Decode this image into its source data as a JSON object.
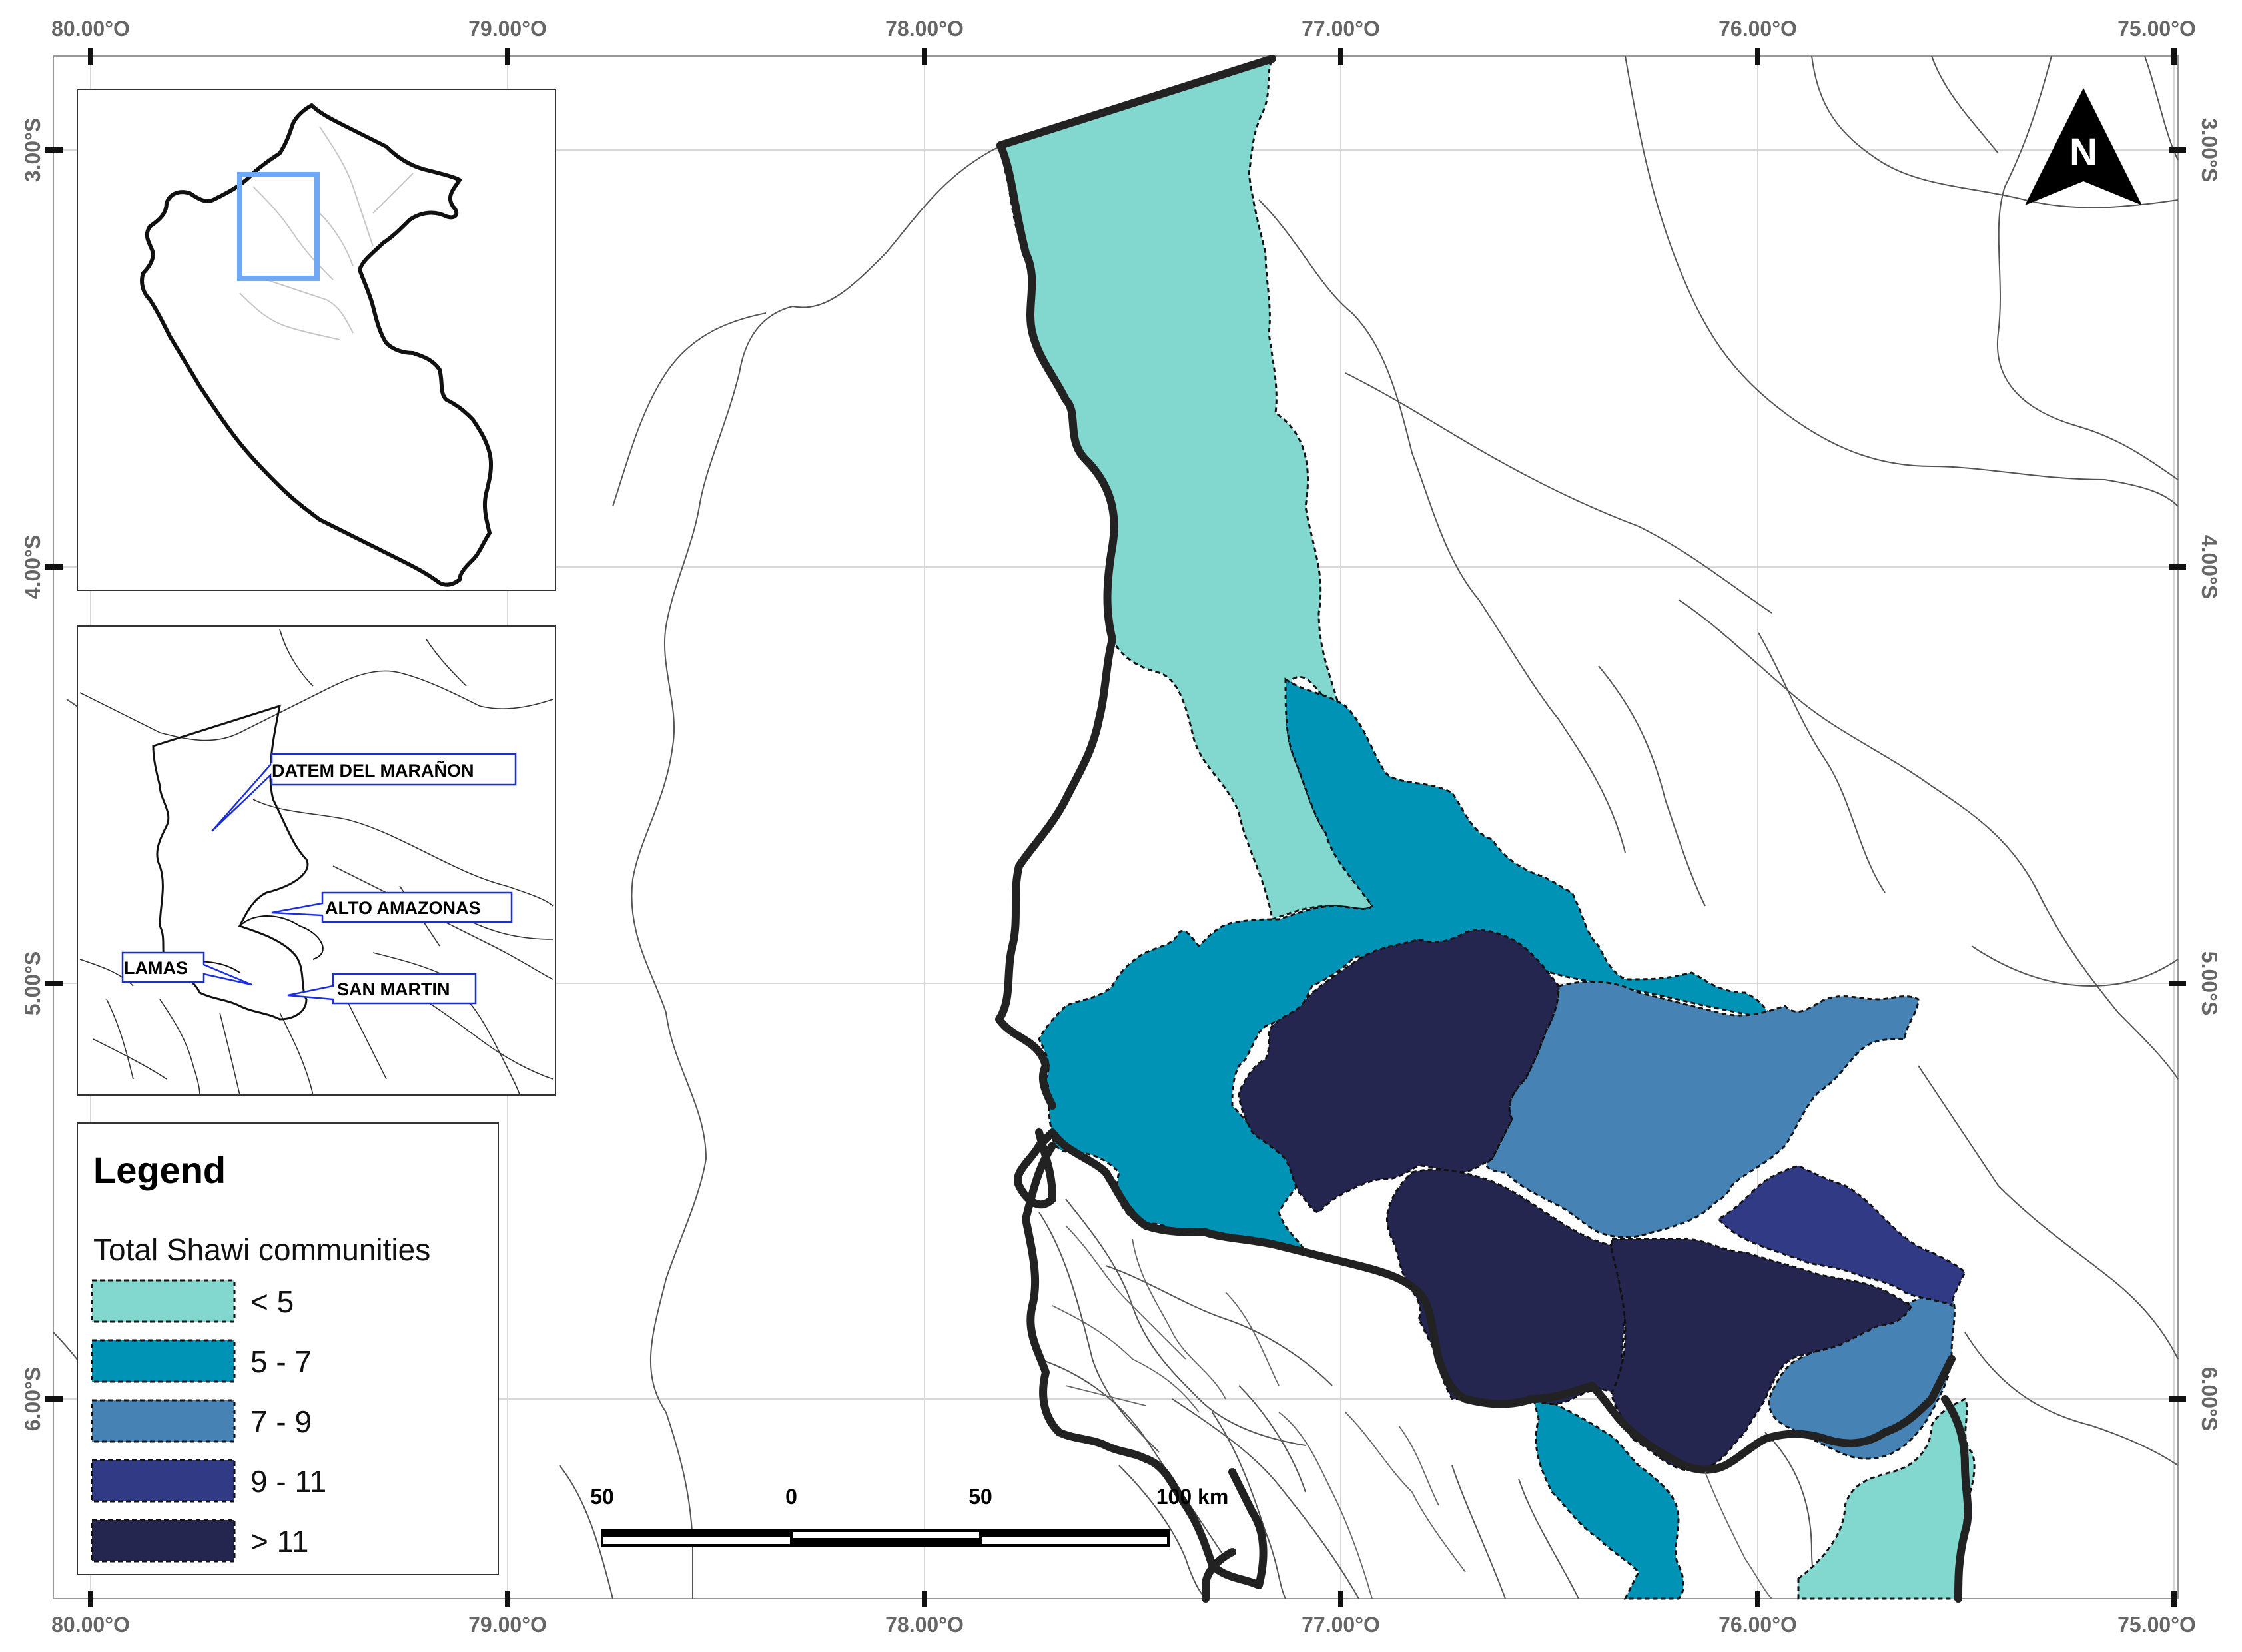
{
  "graticule": {
    "top": [
      "80.00°O",
      "79.00°O",
      "78.00°O",
      "77.00°O",
      "76.00°O",
      "75.00°O"
    ],
    "bottom": [
      "80.00°O",
      "79.00°O",
      "78.00°O",
      "77.00°O",
      "76.00°O",
      "75.00°O"
    ],
    "left": [
      "3.00°S",
      "4.00°S",
      "5.00°S",
      "6.00°S"
    ],
    "right": [
      "3.00°S",
      "4.00°S",
      "5.00°S",
      "6.00°S"
    ]
  },
  "north_arrow": {
    "letter": "N",
    "icon": "north-arrow-icon"
  },
  "inset_provinces": {
    "labels": [
      "DATEM DEL MARAÑON",
      "ALTO AMAZONAS",
      "LAMAS",
      "SAN MARTIN"
    ]
  },
  "legend": {
    "title": "Legend",
    "subtitle": "Total Shawi communities",
    "classes": [
      {
        "label": "< 5",
        "color": "#82d7cf"
      },
      {
        "label": "5 - 7",
        "color": "#0093b5"
      },
      {
        "label": "7 - 9",
        "color": "#4682b4"
      },
      {
        "label": "9 - 11",
        "color": "#313a85"
      },
      {
        "label": "> 11",
        "color": "#242650"
      }
    ]
  },
  "scale_bar": {
    "labels": [
      "50",
      "0",
      "50",
      "100 km"
    ]
  },
  "colors": {
    "boundary": "#222222",
    "highlight": "#6fa8f5",
    "callout": "#1a2ee0",
    "thin_lines": "#555555",
    "grid": "#d8d8d8"
  }
}
